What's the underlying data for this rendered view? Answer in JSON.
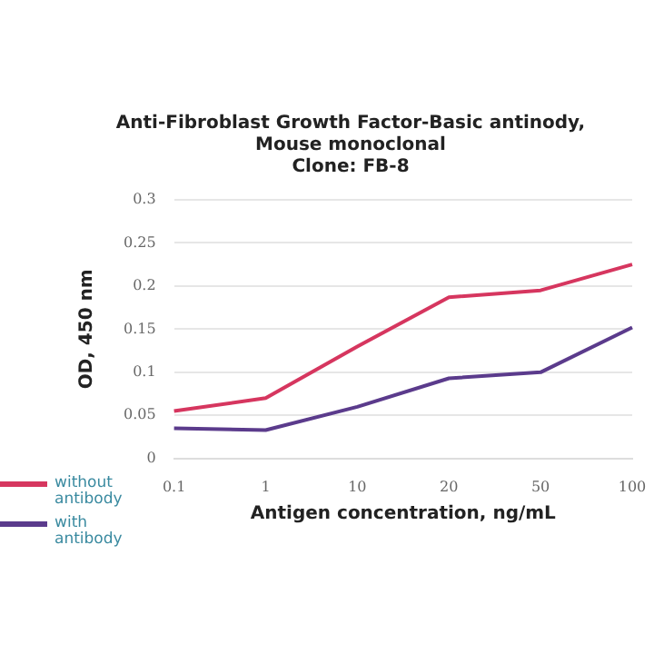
{
  "chart_data": {
    "type": "line",
    "title": [
      "Anti-Fibroblast Growth Factor-Basic antinody,",
      "Mouse monoclonal",
      "Clone: FB-8"
    ],
    "xlabel": "Antigen concentration, ng/mL",
    "ylabel": "OD, 450 nm",
    "categories": [
      "0.1",
      "1",
      "10",
      "20",
      "50",
      "100"
    ],
    "series": [
      {
        "name": "without antibody",
        "color": "#d6365f",
        "values": [
          0.055,
          0.07,
          0.13,
          0.187,
          0.195,
          0.225
        ]
      },
      {
        "name": "with antibody",
        "color": "#5b3b8c",
        "values": [
          0.035,
          0.033,
          0.06,
          0.093,
          0.1,
          0.152
        ]
      }
    ],
    "ylim": [
      0,
      0.3
    ],
    "yticks": [
      0,
      0.05,
      0.1,
      0.15,
      0.2,
      0.25,
      0.3
    ],
    "grid": "y",
    "legend": "left",
    "marker": "none",
    "line_style": "solid"
  }
}
